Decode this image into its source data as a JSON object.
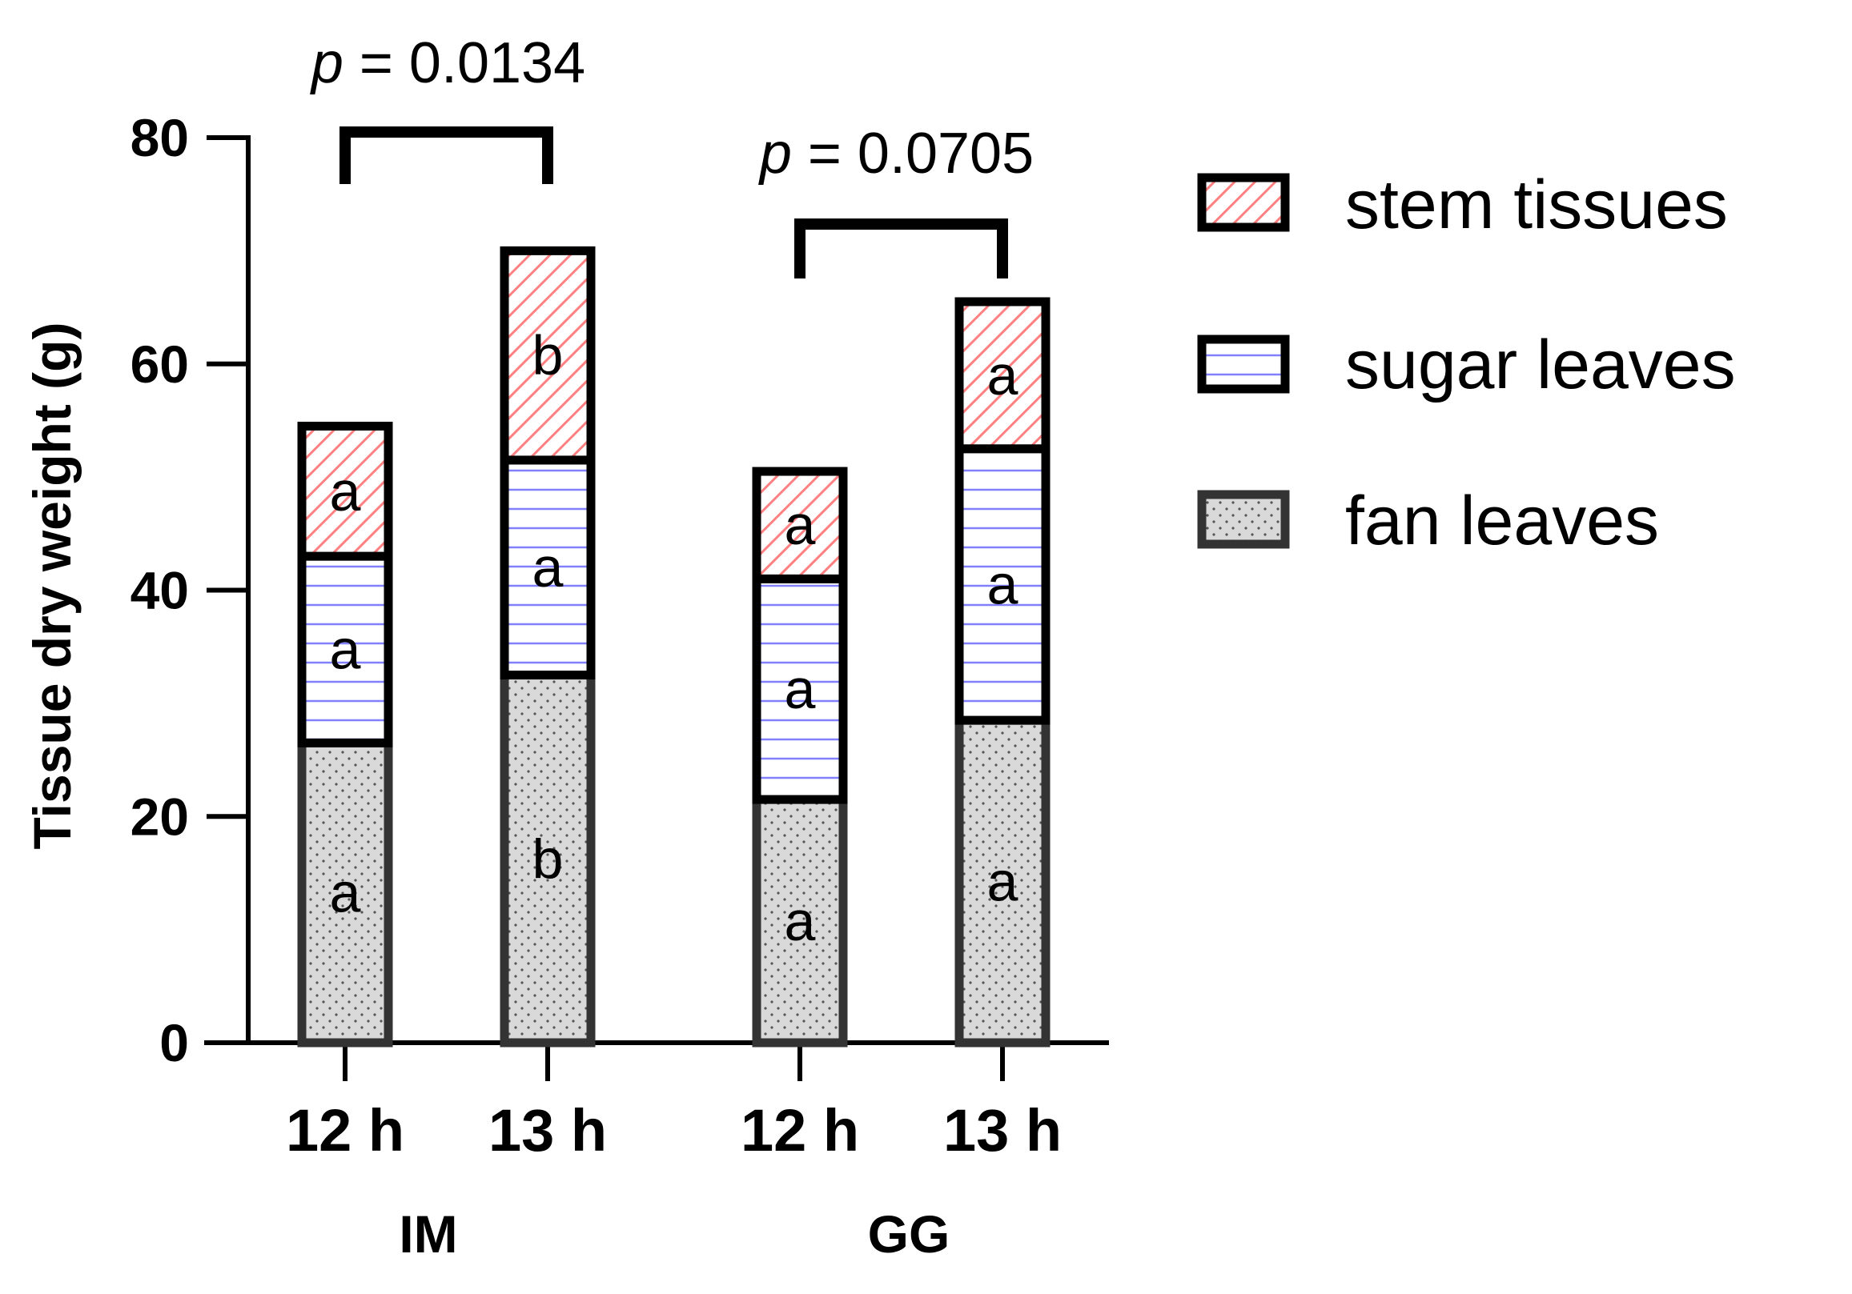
{
  "chart_data": {
    "type": "bar",
    "stacked": true,
    "ylabel": "Tissue dry weight  (g)",
    "xlabel": "",
    "ylim": [
      0,
      80
    ],
    "yticks": [
      0,
      20,
      40,
      60,
      80
    ],
    "groups": [
      "IM",
      "GG"
    ],
    "categories": [
      "12 h",
      "13 h",
      "12 h",
      "13 h"
    ],
    "category_group": [
      "IM",
      "IM",
      "GG",
      "GG"
    ],
    "series": [
      {
        "name": "fan leaves",
        "values": [
          26.5,
          32.5,
          21.5,
          28.5
        ],
        "letters": [
          "a",
          "b",
          "a",
          "a"
        ],
        "color": "#d9d9d9",
        "pattern": "dots"
      },
      {
        "name": "sugar leaves",
        "values": [
          16.5,
          19.0,
          19.5,
          24.0
        ],
        "letters": [
          "a",
          "a",
          "a",
          "a"
        ],
        "color": "#ffffff",
        "pattern": "horizontal-lines",
        "pattern_color": "#8080ff"
      },
      {
        "name": "stem tissues",
        "values": [
          11.5,
          18.5,
          9.5,
          13.0
        ],
        "letters": [
          "a",
          "b",
          "a",
          "a"
        ],
        "color": "#ffffff",
        "pattern": "diagonal-hatch",
        "pattern_color": "#ff8080"
      }
    ],
    "comparisons": [
      {
        "group": "IM",
        "p_prefix": "p",
        "p_value": "= 0.0134"
      },
      {
        "group": "GG",
        "p_prefix": "p",
        "p_value": "= 0.0705"
      }
    ],
    "legend": [
      "stem tissues",
      "sugar leaves",
      "fan leaves"
    ],
    "legend_position": "right",
    "grid": false
  }
}
